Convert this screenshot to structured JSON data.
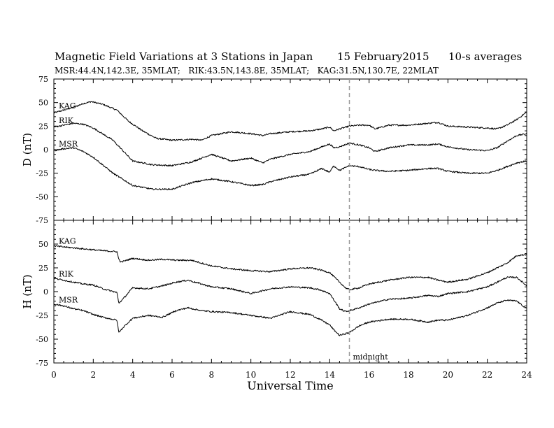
{
  "title": "Magnetic Field Variations at 3 Stations in Japan",
  "date": "15 February2015",
  "averaging": "10-s averages",
  "stations_line": "MSR:44.4N,142.3E, 35MLAT;   RIK:43.5N,143.8E, 35MLAT;   KAG:31.5N,130.7E, 22MLAT",
  "colors": {
    "trace": "#000000",
    "midnight_line": "#9a9a9a",
    "axis": "#000000"
  },
  "chart_data": [
    {
      "type": "line",
      "panel": "top",
      "ylabel": "D (nT)",
      "xlabel": "",
      "xlim": [
        0,
        24
      ],
      "ylim": [
        -75,
        75
      ],
      "yticks": [
        75,
        50,
        25,
        0,
        -25,
        -50,
        -75
      ],
      "xticks": [
        0,
        2,
        4,
        6,
        8,
        10,
        12,
        14,
        16,
        18,
        20,
        22,
        24
      ],
      "series": [
        {
          "name": "KAG",
          "x": [
            0,
            0.5,
            1,
            1.5,
            1.9,
            2.5,
            3.2,
            3.8,
            4.5,
            5.2,
            6,
            7,
            7.5,
            8,
            9,
            10,
            10.6,
            11,
            12,
            13,
            13.6,
            14,
            14.2,
            14.5,
            15,
            15.5,
            16,
            16.3,
            17,
            18,
            19,
            19.5,
            20,
            21,
            22,
            22.5,
            23,
            23.5,
            24
          ],
          "values": [
            39,
            42,
            45,
            49,
            51,
            48,
            42,
            30,
            20,
            12,
            10,
            11,
            10,
            15,
            19,
            17,
            15,
            17,
            19,
            20,
            22,
            24,
            20,
            22,
            25,
            26,
            26,
            22,
            26,
            26,
            28,
            29,
            25,
            24,
            23,
            22,
            26,
            32,
            40
          ]
        },
        {
          "name": "RIK",
          "x": [
            0,
            0.5,
            1,
            1.5,
            2,
            3,
            4,
            5,
            6,
            7,
            8,
            9,
            10,
            10.6,
            11,
            12,
            13,
            13.6,
            14,
            14.2,
            14.5,
            15,
            15.5,
            16,
            16.3,
            17,
            18,
            19,
            19.5,
            20,
            21,
            22,
            22.5,
            23,
            23.5,
            24
          ],
          "values": [
            24,
            26,
            28,
            27,
            23,
            10,
            -12,
            -16,
            -17,
            -13,
            -5,
            -12,
            -9,
            -14,
            -10,
            -5,
            -2,
            3,
            6,
            2,
            3,
            7,
            5,
            2,
            -2,
            2,
            5,
            5,
            6,
            3,
            0,
            -1,
            2,
            9,
            15,
            17
          ]
        },
        {
          "name": "MSR",
          "x": [
            0,
            0.5,
            1,
            1.5,
            2,
            3,
            4,
            5,
            6,
            7,
            8,
            9,
            10,
            10.6,
            11,
            12,
            13,
            13.6,
            14,
            14.2,
            14.5,
            15,
            15.5,
            16,
            16.3,
            17,
            18,
            19,
            19.5,
            20,
            21,
            22,
            22.5,
            23,
            23.5,
            24
          ],
          "values": [
            -1,
            1,
            2,
            -2,
            -8,
            -25,
            -38,
            -42,
            -42,
            -35,
            -31,
            -34,
            -38,
            -37,
            -34,
            -29,
            -26,
            -20,
            -24,
            -17,
            -22,
            -17,
            -18,
            -21,
            -22,
            -23,
            -22,
            -20,
            -20,
            -23,
            -25,
            -25,
            -22,
            -18,
            -14,
            -12
          ]
        }
      ]
    },
    {
      "type": "line",
      "panel": "bottom",
      "ylabel": "H (nT)",
      "xlabel": "Universal Time",
      "xlim": [
        0,
        24
      ],
      "ylim": [
        -75,
        75
      ],
      "yticks": [
        50,
        25,
        0,
        -25,
        -50,
        -75
      ],
      "xticks": [
        0,
        2,
        4,
        6,
        8,
        10,
        12,
        14,
        16,
        18,
        20,
        22,
        24
      ],
      "annotation": {
        "x": 15,
        "text": "midnight"
      },
      "series": [
        {
          "name": "KAG",
          "x": [
            0,
            0.5,
            1,
            1.5,
            2,
            2.5,
            3.2,
            3.3,
            3.4,
            4,
            4.8,
            5.5,
            6.2,
            7,
            8,
            9,
            10,
            11,
            12,
            13,
            13.5,
            14,
            14.5,
            14.8,
            15,
            15.5,
            16,
            17,
            18,
            19,
            19.5,
            20,
            21,
            22,
            23,
            23.5,
            24
          ],
          "values": [
            48,
            47,
            46,
            45,
            44,
            43,
            42,
            34,
            31,
            35,
            33,
            34,
            33,
            33,
            27,
            24,
            22,
            21,
            24,
            25,
            23,
            20,
            10,
            4,
            2,
            4,
            8,
            12,
            15,
            15,
            12,
            10,
            13,
            20,
            30,
            38,
            39
          ]
        },
        {
          "name": "RIK",
          "x": [
            0,
            0.5,
            1,
            1.5,
            2,
            2.5,
            3.2,
            3.3,
            3.5,
            4,
            4.8,
            5.5,
            6.2,
            6.8,
            7.5,
            8,
            9,
            10,
            11,
            12,
            13,
            13.5,
            14,
            14.5,
            14.8,
            15,
            15.5,
            16,
            17,
            18,
            19,
            19.5,
            20,
            21,
            22,
            22.5,
            23,
            23.5,
            24
          ],
          "values": [
            14,
            12,
            10,
            8,
            7,
            3,
            -1,
            -12,
            -8,
            4,
            3,
            6,
            10,
            12,
            8,
            5,
            3,
            -2,
            3,
            5,
            4,
            2,
            -2,
            -18,
            -21,
            -20,
            -17,
            -13,
            -8,
            -7,
            -4,
            -5,
            -2,
            0,
            5,
            10,
            15,
            15,
            6
          ]
        },
        {
          "name": "MSR",
          "x": [
            0,
            0.5,
            1,
            1.5,
            2,
            2.5,
            3.2,
            3.3,
            3.5,
            4,
            4.8,
            5.5,
            6.2,
            6.8,
            7.5,
            8,
            9,
            10,
            11,
            12,
            13,
            13.5,
            14,
            14.2,
            14.5,
            15,
            15.5,
            16,
            17,
            18,
            19,
            19.5,
            20,
            21,
            22,
            22.5,
            23,
            23.5,
            24
          ],
          "values": [
            -13,
            -15,
            -18,
            -20,
            -24,
            -27,
            -30,
            -43,
            -38,
            -28,
            -25,
            -27,
            -20,
            -17,
            -20,
            -21,
            -22,
            -25,
            -28,
            -21,
            -24,
            -29,
            -35,
            -40,
            -46,
            -43,
            -36,
            -32,
            -29,
            -29,
            -32,
            -30,
            -30,
            -25,
            -17,
            -12,
            -9,
            -10,
            -18
          ]
        }
      ]
    }
  ]
}
